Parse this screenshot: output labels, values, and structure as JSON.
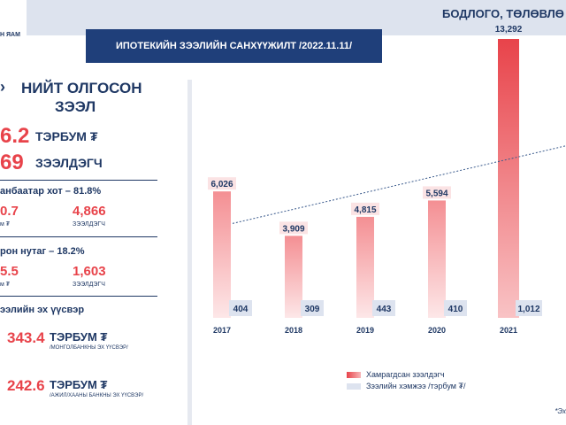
{
  "header": {
    "ministry": "Н ЯАМ",
    "banner_title": "БОДЛОГО, ТӨЛӨВЛӨ",
    "subtitle": "ИПОТЕКИЙН ЗЭЭЛИЙН САНХҮҮЖИЛТ /2022.11.11/"
  },
  "left_panel": {
    "heading_line1": "НИЙТ ОЛГОСОН",
    "heading_line2": "ЗЭЭЛ",
    "total_value": "6.2",
    "total_unit": "ТЭРБУМ ₮",
    "borrowers_value": "69",
    "borrowers_unit": "ЗЭЭЛДЭГЧ",
    "ub": {
      "title": "анбаатар хот – 81.8%",
      "amount": "0.7",
      "amount_caption": "м ₮",
      "borrowers": "4,866",
      "borrowers_caption": "ЗЭЭЛДЭГЧ"
    },
    "rural": {
      "title": "рон нутаг – 18.2%",
      "amount": "5.5",
      "amount_caption": "м ₮",
      "borrowers": "1,603",
      "borrowers_caption": "ЗЭЭЛДЭГЧ"
    },
    "sources_title": "ээлийн эх үүсвэр",
    "source1_value": "343.4",
    "source1_unit": "ТЭРБУМ ₮",
    "source1_caption": "/МОНГОЛБАНКНЫ ЭХ ҮҮСВЭР/",
    "source2_value": "242.6",
    "source2_unit": "ТЭРБУМ ₮",
    "source2_caption": "/АЖИЛ/ХААНЫ БАНКНЫ ЭХ ҮҮСВЭР/"
  },
  "footnote": "*Эх",
  "colors": {
    "navy": "#1f3864",
    "accent_red": "#e8434a",
    "pale_blue": "#dde3ef"
  },
  "chart_data": {
    "type": "bar",
    "categories": [
      "2017",
      "2018",
      "2019",
      "2020",
      "2021"
    ],
    "series": [
      {
        "name": "Хамрагдсан зээлдэгч",
        "values": [
          6026,
          3909,
          4815,
          5594,
          13292
        ],
        "labels": [
          "6,026",
          "3,909",
          "4,815",
          "5,594",
          "13,292"
        ],
        "color": "#e8434a"
      },
      {
        "name": "Зээлийн хэмжээ /тэрбум ₮/",
        "values": [
          404,
          309,
          443,
          410,
          1012
        ],
        "labels": [
          "404",
          "309",
          "443",
          "410",
          "1,012"
        ],
        "color": "#dde3ef"
      }
    ],
    "trendline": true,
    "legend": "bottom"
  }
}
